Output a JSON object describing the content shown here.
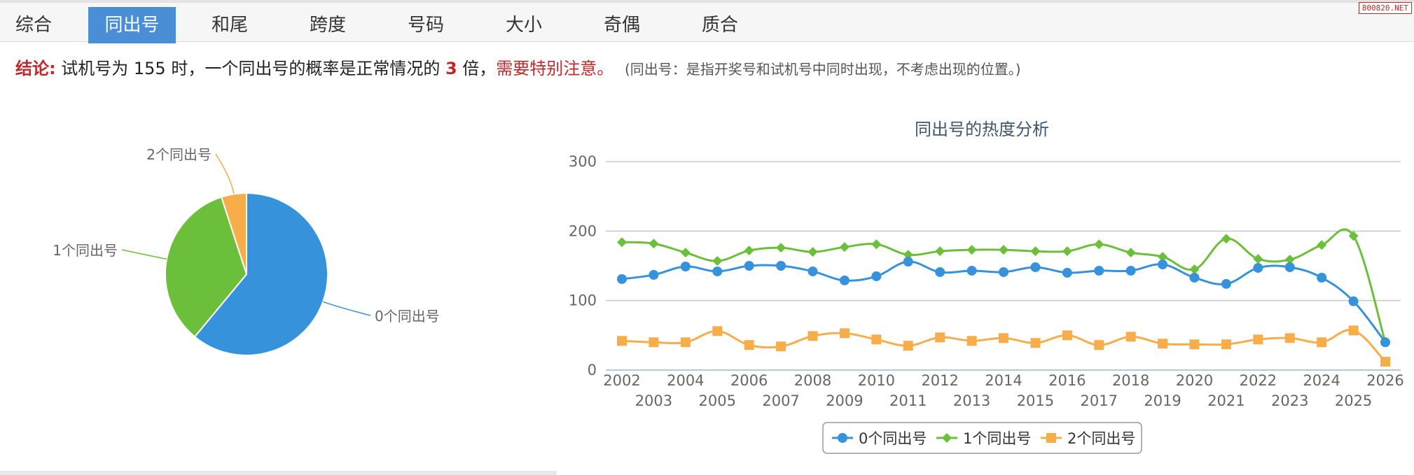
{
  "tabs": [
    {
      "label": "综合",
      "active": false
    },
    {
      "label": "同出号",
      "active": true
    },
    {
      "label": "和尾",
      "active": false
    },
    {
      "label": "跨度",
      "active": false
    },
    {
      "label": "号码",
      "active": false
    },
    {
      "label": "大小",
      "active": false
    },
    {
      "label": "奇偶",
      "active": false
    },
    {
      "label": "质合",
      "active": false
    }
  ],
  "watermark": "800820.NET",
  "conclusion": {
    "lead": "结论:",
    "text1": "试机号为 155 时，一个同出号的概率是正常情况的 ",
    "multiple": "3",
    "text2": " 倍，",
    "warning": "需要特别注意。",
    "note": "(同出号：是指开奖号和试机号中同时出现，不考虑出现的位置。)"
  },
  "colors": {
    "blue": "#3592db",
    "green": "#6cbf3b",
    "orange": "#f7ad4a"
  },
  "chart_data": [
    {
      "type": "pie",
      "title": "",
      "slices": [
        {
          "label": "0个同出号",
          "value": 61,
          "color": "#3592db"
        },
        {
          "label": "1个同出号",
          "value": 34,
          "color": "#6cbf3b"
        },
        {
          "label": "2个同出号",
          "value": 5,
          "color": "#f7ad4a"
        }
      ]
    },
    {
      "type": "line",
      "title": "同出号的热度分析",
      "x": [
        "2002",
        "2003",
        "2004",
        "2005",
        "2006",
        "2007",
        "2008",
        "2009",
        "2010",
        "2011",
        "2012",
        "2013",
        "2014",
        "2015",
        "2016",
        "2017",
        "2018",
        "2019",
        "2020",
        "2021",
        "2022",
        "2023",
        "2024",
        "2025",
        "2026"
      ],
      "yticks": [
        0,
        100,
        200,
        300
      ],
      "ylim": [
        0,
        300
      ],
      "grid": true,
      "legend_position": "bottom",
      "series": [
        {
          "name": "0个同出号",
          "color": "#3592db",
          "marker": "circle",
          "values": [
            131,
            137,
            149,
            142,
            150,
            150,
            142,
            129,
            135,
            156,
            141,
            143,
            141,
            148,
            140,
            143,
            143,
            152,
            133,
            124,
            147,
            148,
            133,
            99,
            40
          ]
        },
        {
          "name": "1个同出号",
          "color": "#6cbf3b",
          "marker": "diamond",
          "values": [
            184,
            182,
            169,
            157,
            172,
            176,
            170,
            177,
            181,
            166,
            171,
            173,
            173,
            171,
            171,
            181,
            169,
            163,
            145,
            189,
            160,
            159,
            180,
            193,
            40
          ]
        },
        {
          "name": "2个同出号",
          "color": "#f7ad4a",
          "marker": "square",
          "values": [
            42,
            40,
            40,
            56,
            36,
            34,
            49,
            53,
            44,
            35,
            47,
            42,
            46,
            39,
            50,
            36,
            48,
            38,
            37,
            37,
            44,
            46,
            40,
            57,
            12
          ]
        }
      ]
    }
  ]
}
